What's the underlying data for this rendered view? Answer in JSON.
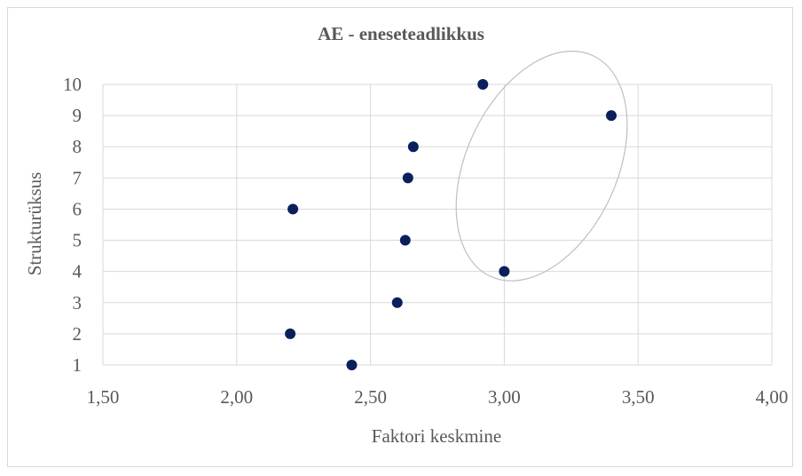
{
  "chart_data": {
    "type": "scatter",
    "title": "AE - eneseteadlikkus",
    "xlabel": "Faktori keskmine",
    "ylabel": "Strukturüksus",
    "xlim": [
      1.5,
      4.0
    ],
    "ylim": [
      1,
      10
    ],
    "x_ticks": [
      "1,50",
      "2,00",
      "2,50",
      "3,00",
      "3,50",
      "4,00"
    ],
    "x_tick_values": [
      1.5,
      2.0,
      2.5,
      3.0,
      3.5,
      4.0
    ],
    "y_ticks": [
      "1",
      "2",
      "3",
      "4",
      "5",
      "6",
      "7",
      "8",
      "9",
      "10"
    ],
    "y_tick_values": [
      1,
      2,
      3,
      4,
      5,
      6,
      7,
      8,
      9,
      10
    ],
    "grid": true,
    "point_color": "#0b1f5c",
    "points": [
      {
        "x": 2.43,
        "y": 1
      },
      {
        "x": 2.2,
        "y": 2
      },
      {
        "x": 2.6,
        "y": 3
      },
      {
        "x": 3.0,
        "y": 4
      },
      {
        "x": 2.63,
        "y": 5
      },
      {
        "x": 2.21,
        "y": 6
      },
      {
        "x": 2.64,
        "y": 7
      },
      {
        "x": 2.66,
        "y": 8
      },
      {
        "x": 3.4,
        "y": 9
      },
      {
        "x": 2.92,
        "y": 10
      }
    ],
    "annotation": {
      "shape": "ellipse",
      "highlights_points_y": [
        4,
        9,
        10
      ],
      "color": "#bfbfbf"
    }
  }
}
